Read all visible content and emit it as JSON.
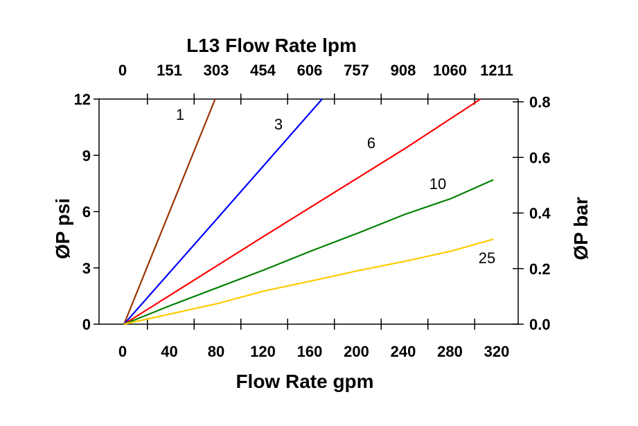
{
  "chart_data": {
    "type": "line",
    "title": "L13  Flow Rate lpm",
    "xlabel": "Flow Rate gpm",
    "ylabel": "ØP psi",
    "y2label": "ØP bar",
    "xlim": [
      -20,
      340
    ],
    "ylim": [
      0,
      12
    ],
    "y2lim": [
      0,
      0.81
    ],
    "x_ticks": [
      0,
      40,
      80,
      120,
      160,
      200,
      240,
      280,
      320
    ],
    "x_tick_labels": [
      "0",
      "40",
      "80",
      "120",
      "160",
      "200",
      "240",
      "280",
      "320"
    ],
    "x_top_tick_labels": [
      "0",
      "151",
      "303",
      "454",
      "606",
      "757",
      "908",
      "1060",
      "1211"
    ],
    "y_ticks": [
      0,
      3,
      6,
      9,
      12
    ],
    "y_tick_labels": [
      "0",
      "3",
      "6",
      "9",
      "12"
    ],
    "y2_ticks": [
      0,
      0.2,
      0.4,
      0.6,
      0.8
    ],
    "y2_tick_labels": [
      "0.0",
      "0.2",
      "0.4",
      "0.6",
      "0.8"
    ],
    "grid": false,
    "legend": "none (inline curve labels)",
    "series": [
      {
        "name": "1",
        "color": "#993300",
        "x": [
          0,
          78
        ],
        "y": [
          0,
          12
        ]
      },
      {
        "name": "3",
        "color": "#0000ff",
        "x": [
          0,
          80,
          169.5
        ],
        "y": [
          0,
          5.65,
          12
        ]
      },
      {
        "name": "6",
        "color": "#ff0000",
        "x": [
          0,
          120,
          200,
          240,
          305
        ],
        "y": [
          0,
          4.7,
          7.8,
          9.35,
          12
        ]
      },
      {
        "name": "10",
        "color": "#008000",
        "x": [
          0,
          40,
          80,
          120,
          160,
          200,
          240,
          280,
          316
        ],
        "y": [
          0,
          1.0,
          1.95,
          2.9,
          3.9,
          4.85,
          5.85,
          6.7,
          7.7
        ]
      },
      {
        "name": "25",
        "color": "#ffcc00",
        "x": [
          0,
          40,
          80,
          120,
          160,
          200,
          240,
          280,
          316
        ],
        "y": [
          0,
          0.55,
          1.1,
          1.77,
          2.3,
          2.85,
          3.35,
          3.9,
          4.53
        ]
      }
    ]
  }
}
